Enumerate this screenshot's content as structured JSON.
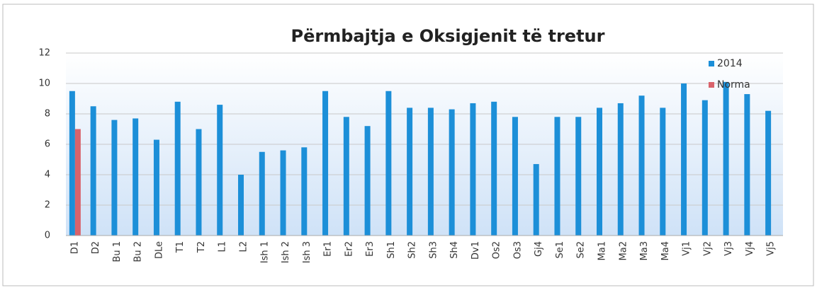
{
  "chart_data": {
    "type": "bar",
    "title": "Përmbajtja e Oksigjenit të tretur",
    "categories": [
      "D1",
      "D2",
      "Bu 1",
      "Bu 2",
      "DLe",
      "T1",
      "T2",
      "L1",
      "L2",
      "Ish 1",
      "Ish 2",
      "Ish 3",
      "Er1",
      "Er2",
      "Er3",
      "Sh1",
      "Sh2",
      "Sh3",
      "Sh4",
      "Dv1",
      "Os2",
      "Os3",
      "Gj4",
      "Se1",
      "Se2",
      "Ma1",
      "Ma2",
      "Ma3",
      "Ma4",
      "Vj1",
      "Vj2",
      "Vj3",
      "Vj4",
      "Vj5"
    ],
    "series": [
      {
        "name": "2014",
        "color": "#1c8fd8",
        "values": [
          9.5,
          8.5,
          7.6,
          7.7,
          6.3,
          8.8,
          7.0,
          8.6,
          4.0,
          5.5,
          5.6,
          5.8,
          9.5,
          7.8,
          7.2,
          9.5,
          8.4,
          8.4,
          8.3,
          8.7,
          8.8,
          7.8,
          4.7,
          7.8,
          7.8,
          8.4,
          8.7,
          9.2,
          8.4,
          10.0,
          8.9,
          10.1,
          9.3,
          8.2
        ]
      },
      {
        "name": "Norma",
        "color": "#d9636b",
        "values": [
          7.0,
          null,
          null,
          null,
          null,
          null,
          null,
          null,
          null,
          null,
          null,
          null,
          null,
          null,
          null,
          null,
          null,
          null,
          null,
          null,
          null,
          null,
          null,
          null,
          null,
          null,
          null,
          null,
          null,
          null,
          null,
          null,
          null,
          null
        ]
      }
    ],
    "ylim": [
      0,
      12
    ],
    "yticks": [
      0,
      2,
      4,
      6,
      8,
      10,
      12
    ],
    "grid": true,
    "legend": "top-right"
  }
}
